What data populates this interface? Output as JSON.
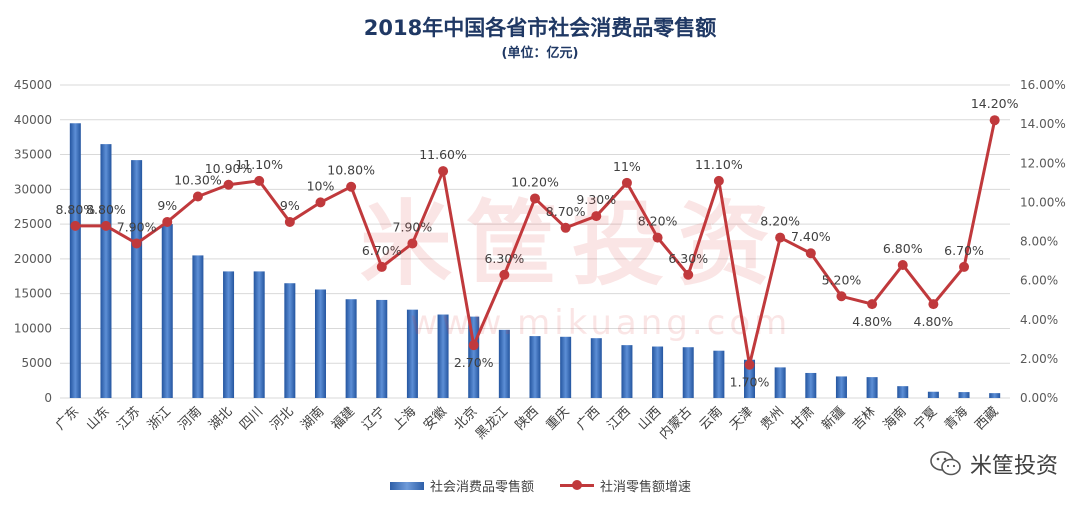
{
  "chart_data": {
    "type": "bar+line",
    "title": "2018年中国各省市社会消费品零售额",
    "subtitle": "(单位：亿元)",
    "categories": [
      "广东",
      "山东",
      "江苏",
      "浙江",
      "河南",
      "湖北",
      "四川",
      "河北",
      "湖南",
      "福建",
      "辽宁",
      "上海",
      "安徽",
      "北京",
      "黑龙江",
      "陕西",
      "重庆",
      "广西",
      "江西",
      "山西",
      "内蒙古",
      "云南",
      "天津",
      "贵州",
      "甘肃",
      "新疆",
      "吉林",
      "海南",
      "宁夏",
      "青海",
      "西藏"
    ],
    "series": [
      {
        "name": "社会消费品零售额",
        "type": "bar",
        "axis": "left",
        "values": [
          39500,
          36500,
          34200,
          25000,
          20500,
          18200,
          18200,
          16500,
          15600,
          14200,
          14100,
          12700,
          12000,
          11700,
          9800,
          8900,
          8800,
          8600,
          7600,
          7400,
          7300,
          6800,
          5500,
          4400,
          3600,
          3100,
          3000,
          1700,
          900,
          850,
          700
        ]
      },
      {
        "name": "社消零售额增速",
        "type": "line",
        "axis": "right",
        "values": [
          8.8,
          8.8,
          7.9,
          9,
          10.3,
          10.9,
          11.1,
          9,
          10,
          10.8,
          6.7,
          7.9,
          11.6,
          2.7,
          6.3,
          10.2,
          8.7,
          9.3,
          11,
          8.2,
          6.3,
          11.1,
          1.7,
          8.2,
          7.4,
          5.2,
          4.8,
          6.8,
          4.8,
          6.7,
          14.2
        ],
        "labels": [
          "8.80%",
          "8.80%",
          "7.90%",
          "9%",
          "10.30%",
          "10.90%",
          "11.10%",
          "9%",
          "10%",
          "10.80%",
          "6.70%",
          "7.90%",
          "11.60%",
          "2.70%",
          "6.30%",
          "10.20%",
          "8.70%",
          "9.30%",
          "11%",
          "8.20%",
          "6.30%",
          "11.10%",
          "1.70%",
          "8.20%",
          "7.40%",
          "5.20%",
          "4.80%",
          "6.80%",
          "4.80%",
          "6.70%",
          "14.20%"
        ]
      }
    ],
    "y_left": {
      "min": 0,
      "max": 45000,
      "ticks": [
        "0",
        "5000",
        "10000",
        "15000",
        "20000",
        "25000",
        "30000",
        "35000",
        "40000",
        "45000"
      ]
    },
    "y_right": {
      "min": 0,
      "max": 16,
      "ticks": [
        "0.00%",
        "2.00%",
        "4.00%",
        "6.00%",
        "8.00%",
        "10.00%",
        "12.00%",
        "14.00%",
        "16.00%"
      ]
    },
    "grid": true,
    "legend_position": "bottom",
    "colors": {
      "bar": "#3a6bb5",
      "line": "#c0393c",
      "title": "#1f3864"
    }
  },
  "brand": {
    "text": "米筐投资"
  },
  "watermark": {
    "text": "米筐投资",
    "url": "www.mikuang.com"
  }
}
